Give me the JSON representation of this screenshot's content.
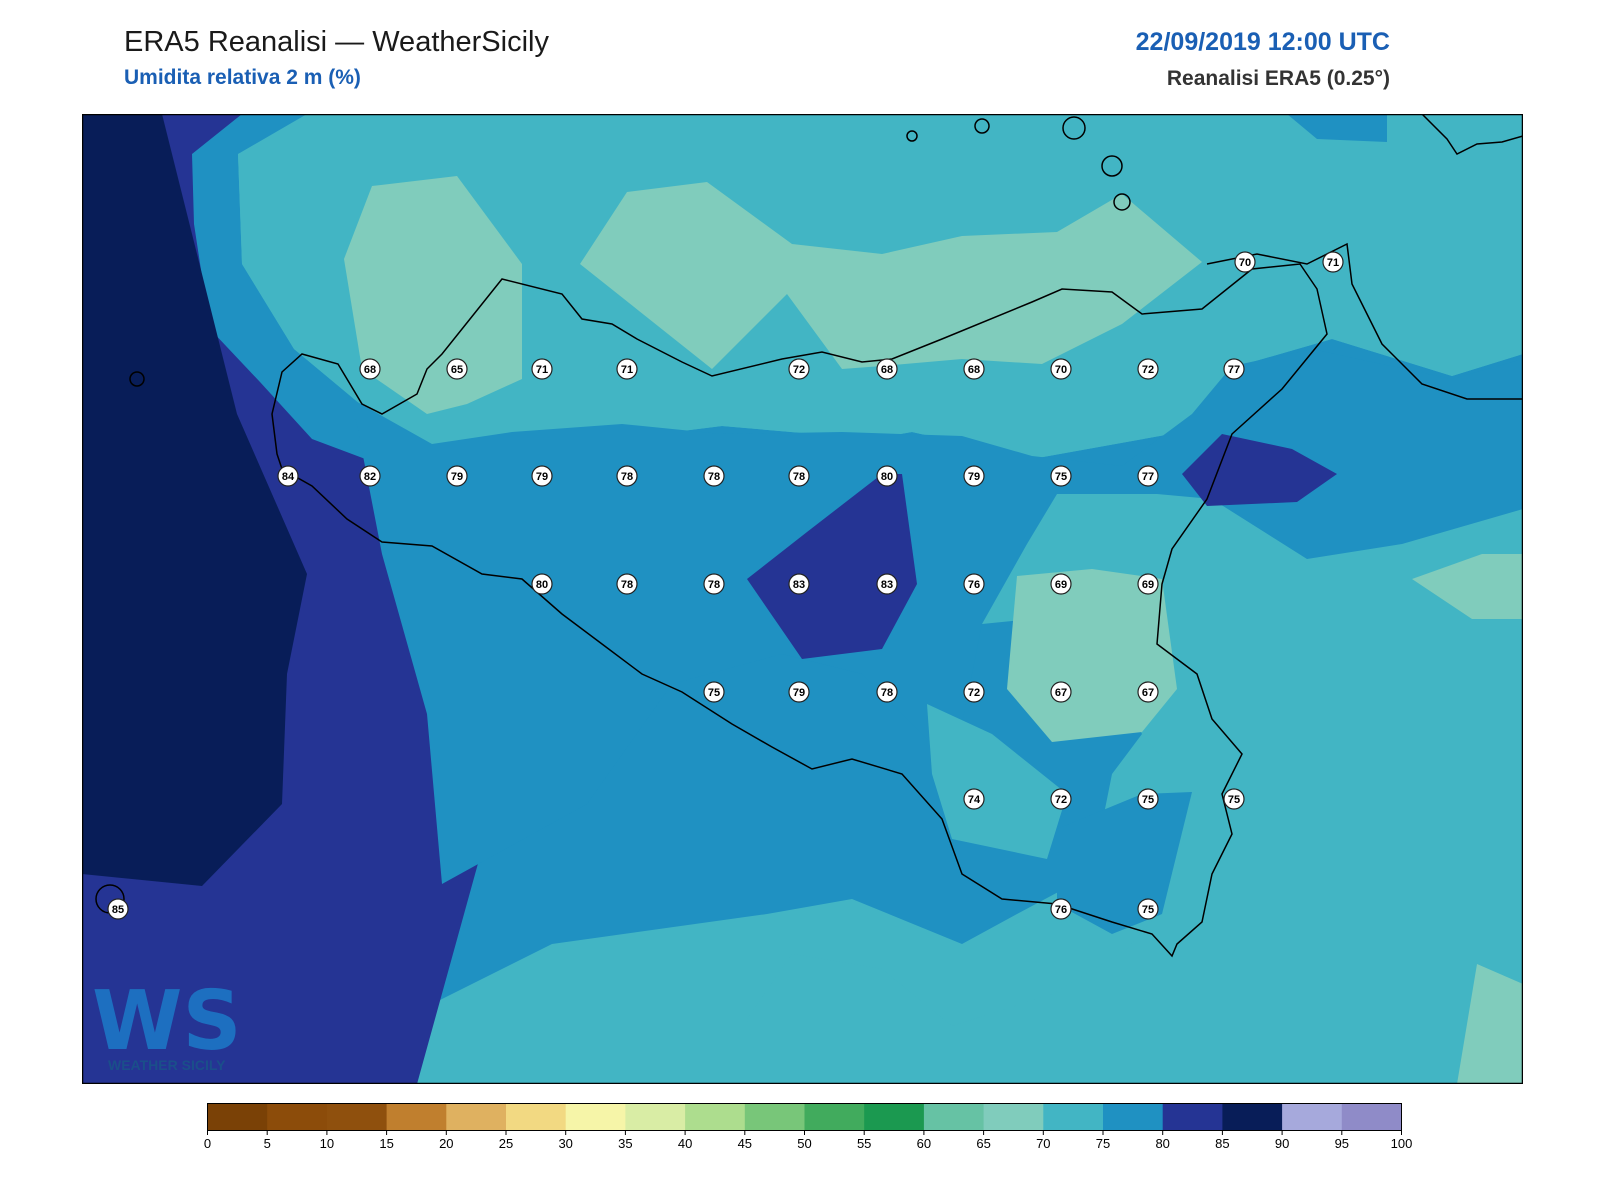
{
  "header": {
    "title": "ERA5 Reanalisi — WeatherSicily",
    "subtitle": "Umidita relativa 2 m (%)",
    "datetime": "22/09/2019 12:00 UTC",
    "source": "Reanalisi ERA5 (0.25°)"
  },
  "logo": {
    "letters": "WS",
    "text": "WEATHER SICILY"
  },
  "colors": {
    "background_sea": "#42b5c4",
    "zone_70_75": "#42b5c4",
    "zone_65_70": "#80ccbc",
    "zone_75_80": "#1f91c2",
    "zone_80_85": "#253494",
    "zone_85_90": "#081d58",
    "coastline": "#000000"
  },
  "stations": [
    {
      "value": "68"
    },
    {
      "value": "65"
    },
    {
      "value": "71"
    },
    {
      "value": "71"
    },
    {
      "value": "72"
    },
    {
      "value": "68"
    },
    {
      "value": "68"
    },
    {
      "value": "70"
    },
    {
      "value": "72"
    },
    {
      "value": "77"
    },
    {
      "value": "70"
    },
    {
      "value": "71"
    },
    {
      "value": "84"
    },
    {
      "value": "82"
    },
    {
      "value": "79"
    },
    {
      "value": "79"
    },
    {
      "value": "78"
    },
    {
      "value": "78"
    },
    {
      "value": "78"
    },
    {
      "value": "80"
    },
    {
      "value": "79"
    },
    {
      "value": "75"
    },
    {
      "value": "77"
    },
    {
      "value": "80"
    },
    {
      "value": "78"
    },
    {
      "value": "78"
    },
    {
      "value": "83"
    },
    {
      "value": "83"
    },
    {
      "value": "76"
    },
    {
      "value": "69"
    },
    {
      "value": "69"
    },
    {
      "value": "75"
    },
    {
      "value": "79"
    },
    {
      "value": "78"
    },
    {
      "value": "72"
    },
    {
      "value": "67"
    },
    {
      "value": "67"
    },
    {
      "value": "74"
    },
    {
      "value": "72"
    },
    {
      "value": "75"
    },
    {
      "value": "75"
    },
    {
      "value": "85"
    },
    {
      "value": "76"
    },
    {
      "value": "75"
    }
  ],
  "colorbar": {
    "colors": [
      "#7a4106",
      "#8c4c0a",
      "#8f500d",
      "#c07f2e",
      "#dfb160",
      "#f2d982",
      "#f6f5a8",
      "#d9eda5",
      "#addd8e",
      "#78c679",
      "#41ab5d",
      "#1b9950",
      "#66c2a4",
      "#80ccbc",
      "#42b5c4",
      "#1f91c2",
      "#253494",
      "#081d58",
      "#a6a9dc",
      "#8f8bc8"
    ],
    "ticks": [
      "0",
      "5",
      "10",
      "15",
      "20",
      "25",
      "30",
      "35",
      "40",
      "45",
      "50",
      "55",
      "60",
      "65",
      "70",
      "75",
      "80",
      "85",
      "90",
      "95",
      "100"
    ]
  }
}
